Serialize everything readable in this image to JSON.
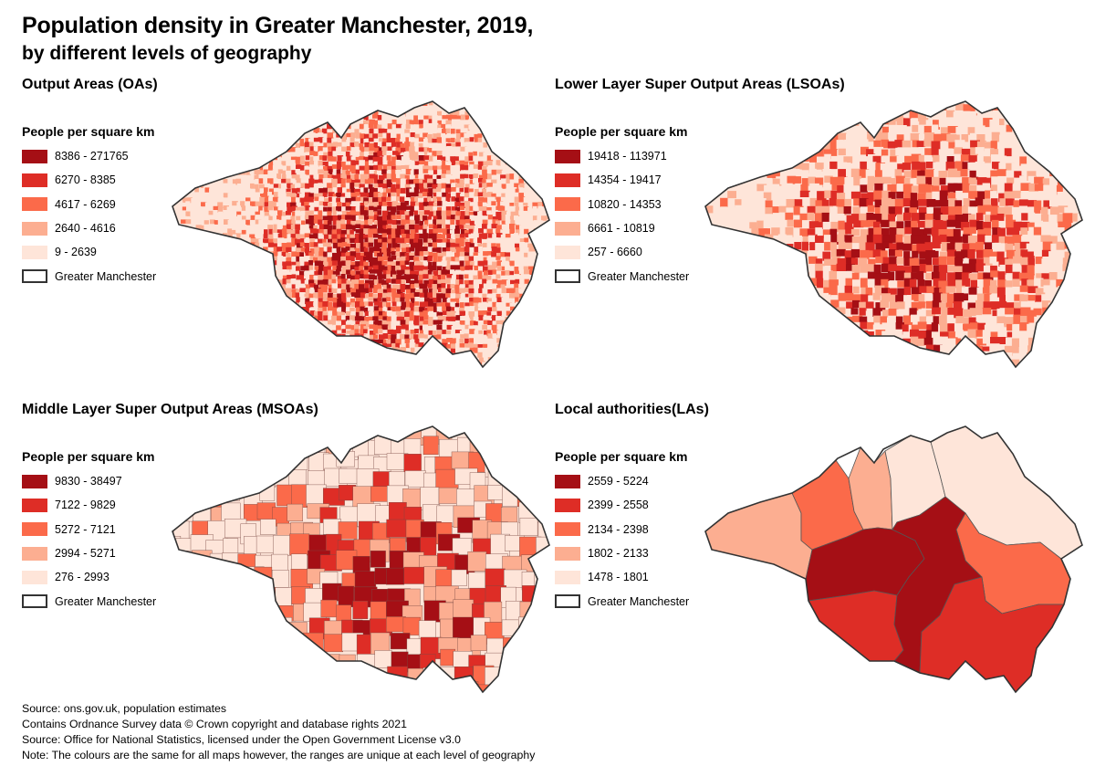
{
  "title": "Population density in Greater Manchester, 2019,",
  "subtitle": "by different levels of geography",
  "colors": [
    "#a50f15",
    "#de2d26",
    "#fb6a4a",
    "#fcae91",
    "#fee5d9"
  ],
  "panels": [
    {
      "title": "Output Areas (OAs)",
      "legend_title": "People per square km",
      "ranges": [
        "8386 - 271765",
        "6270 - 8385",
        "4617 - 6269",
        "2640 - 4616",
        "9 - 2639"
      ],
      "boundary_label": "Greater Manchester"
    },
    {
      "title": "Lower Layer Super Output Areas (LSOAs)",
      "legend_title": "People per square km",
      "ranges": [
        "19418 - 113971",
        "14354 - 19417",
        "10820 - 14353",
        "6661 - 10819",
        "257 - 6660"
      ],
      "boundary_label": "Greater Manchester"
    },
    {
      "title": "Middle Layer Super Output Areas (MSOAs)",
      "legend_title": "People per square km",
      "ranges": [
        "9830 - 38497",
        "7122 - 9829",
        "5272 - 7121",
        "2994 - 5271",
        "276 - 2993"
      ],
      "boundary_label": "Greater Manchester"
    },
    {
      "title": "Local authorities(LAs)",
      "legend_title": "People per square km",
      "ranges": [
        "2559 - 5224",
        "2399 - 2558",
        "2134 - 2398",
        "1802 - 2133",
        "1478 - 1801"
      ],
      "boundary_label": "Greater Manchester"
    }
  ],
  "notes": [
    "Source: ons.gov.uk, population estimates",
    "Contains Ordnance Survey data © Crown copyright and database rights 2021",
    "Source: Office for National Statistics, licensed under the Open Government License v3.0",
    "Note: The colours are the same for all maps however, the ranges are unique at each level of geography"
  ]
}
